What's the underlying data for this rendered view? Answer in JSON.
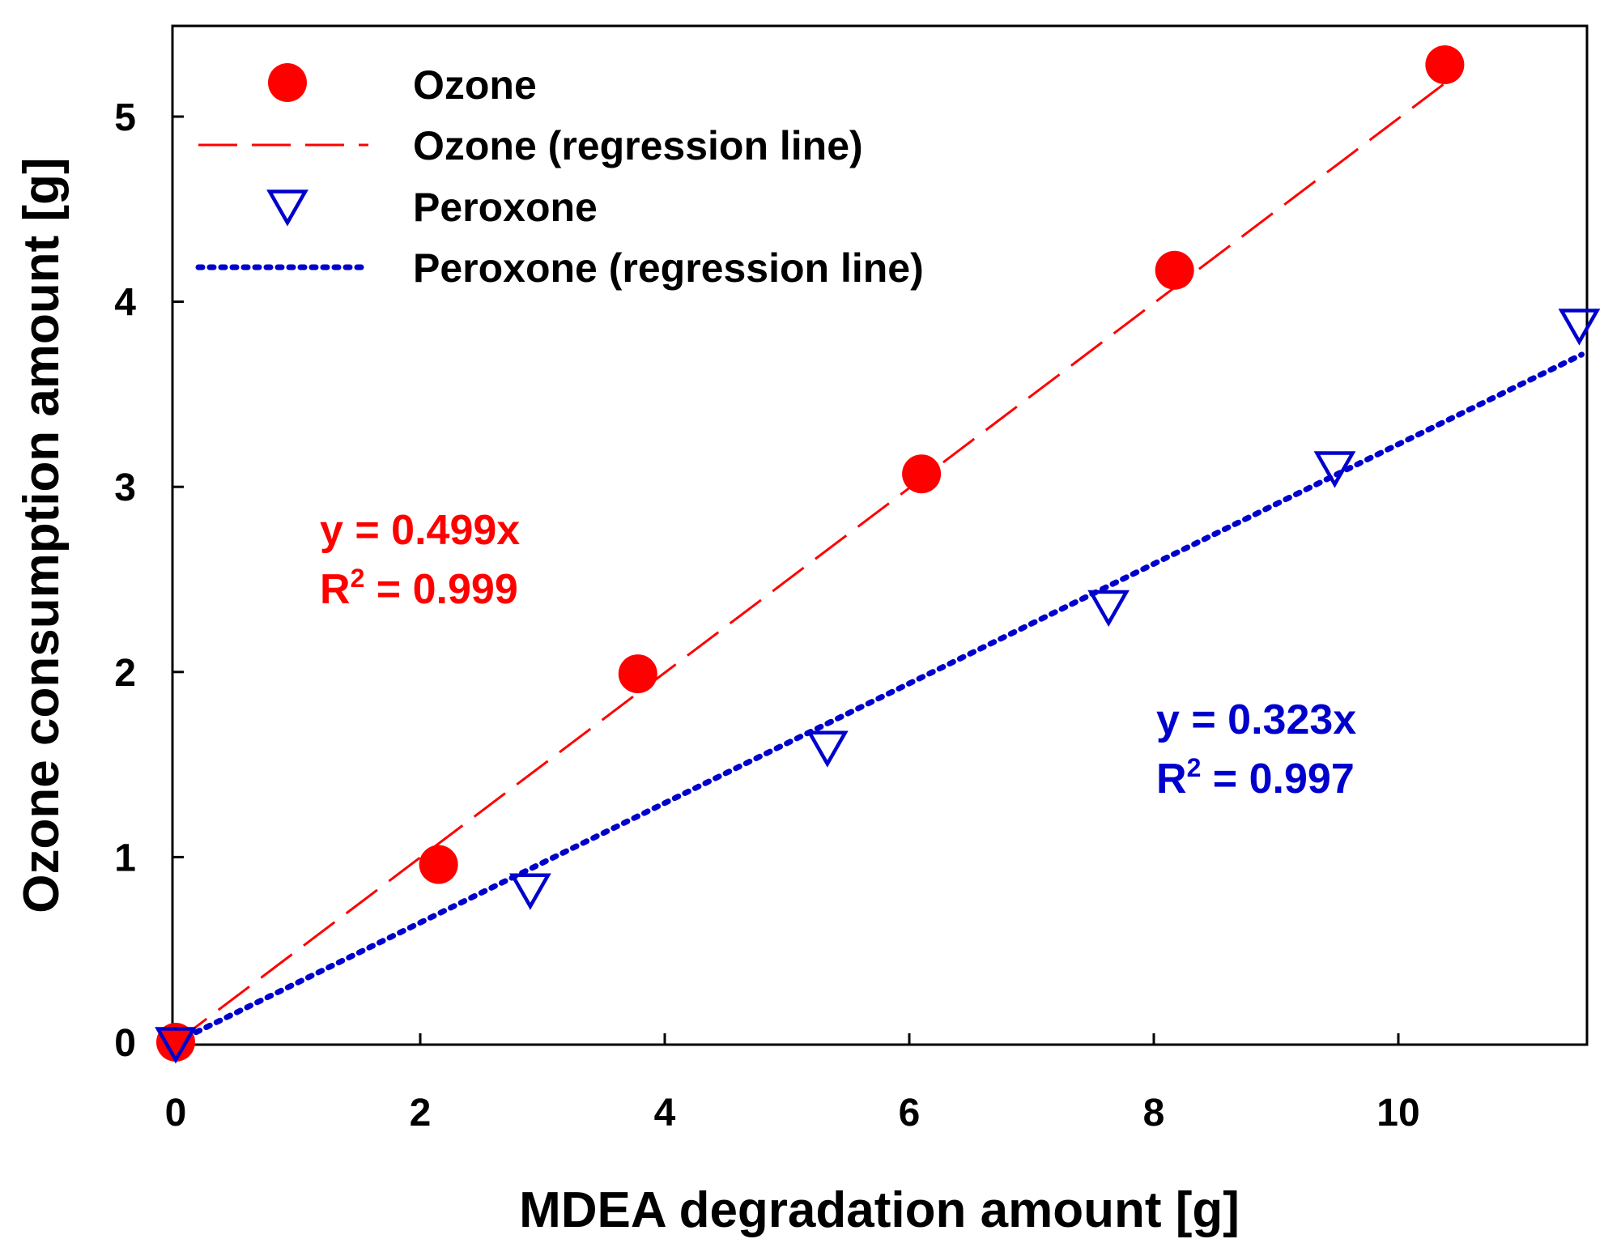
{
  "chart_data": {
    "type": "scatter",
    "title": "",
    "xlabel": "MDEA degradation amount [g]",
    "ylabel": "Ozone consumption amount [g]",
    "xlim": [
      0,
      11.5
    ],
    "ylim": [
      0,
      5.5
    ],
    "xticks": [
      0,
      2,
      4,
      6,
      8,
      10
    ],
    "yticks": [
      0,
      1,
      2,
      3,
      4,
      5
    ],
    "grid": false,
    "legend_position": "top-left",
    "series": [
      {
        "name": "Ozone",
        "kind": "markers",
        "marker": "filled-circle",
        "color": "#ff0000",
        "x": [
          0,
          2.15,
          3.78,
          6.1,
          8.17,
          10.38
        ],
        "y": [
          0,
          0.96,
          1.99,
          3.07,
          4.17,
          5.28
        ]
      },
      {
        "name": "Ozone (regression line)",
        "kind": "line",
        "dash": "long-dash",
        "color": "#ff0000",
        "slope": 0.499,
        "x": [
          0,
          10.5
        ]
      },
      {
        "name": "Peroxone",
        "kind": "markers",
        "marker": "open-triangle-down",
        "color": "#0000cc",
        "x": [
          0,
          2.9,
          5.33,
          7.63,
          9.48,
          11.48
        ],
        "y": [
          0,
          0.83,
          1.6,
          2.36,
          3.11,
          3.88
        ]
      },
      {
        "name": "Peroxone (regression line)",
        "kind": "line",
        "dash": "dotted",
        "color": "#0000cc",
        "slope": 0.323,
        "x": [
          0,
          11.5
        ]
      }
    ],
    "annotations": [
      {
        "equation": "y = 0.499x",
        "r2_prefix": "R",
        "r2_sup": "2",
        "r2_value": " = 0.999",
        "color": "#ff0000"
      },
      {
        "equation": "y = 0.323x",
        "r2_prefix": "R",
        "r2_sup": "2",
        "r2_value": " = 0.997",
        "color": "#0000cc"
      }
    ]
  }
}
